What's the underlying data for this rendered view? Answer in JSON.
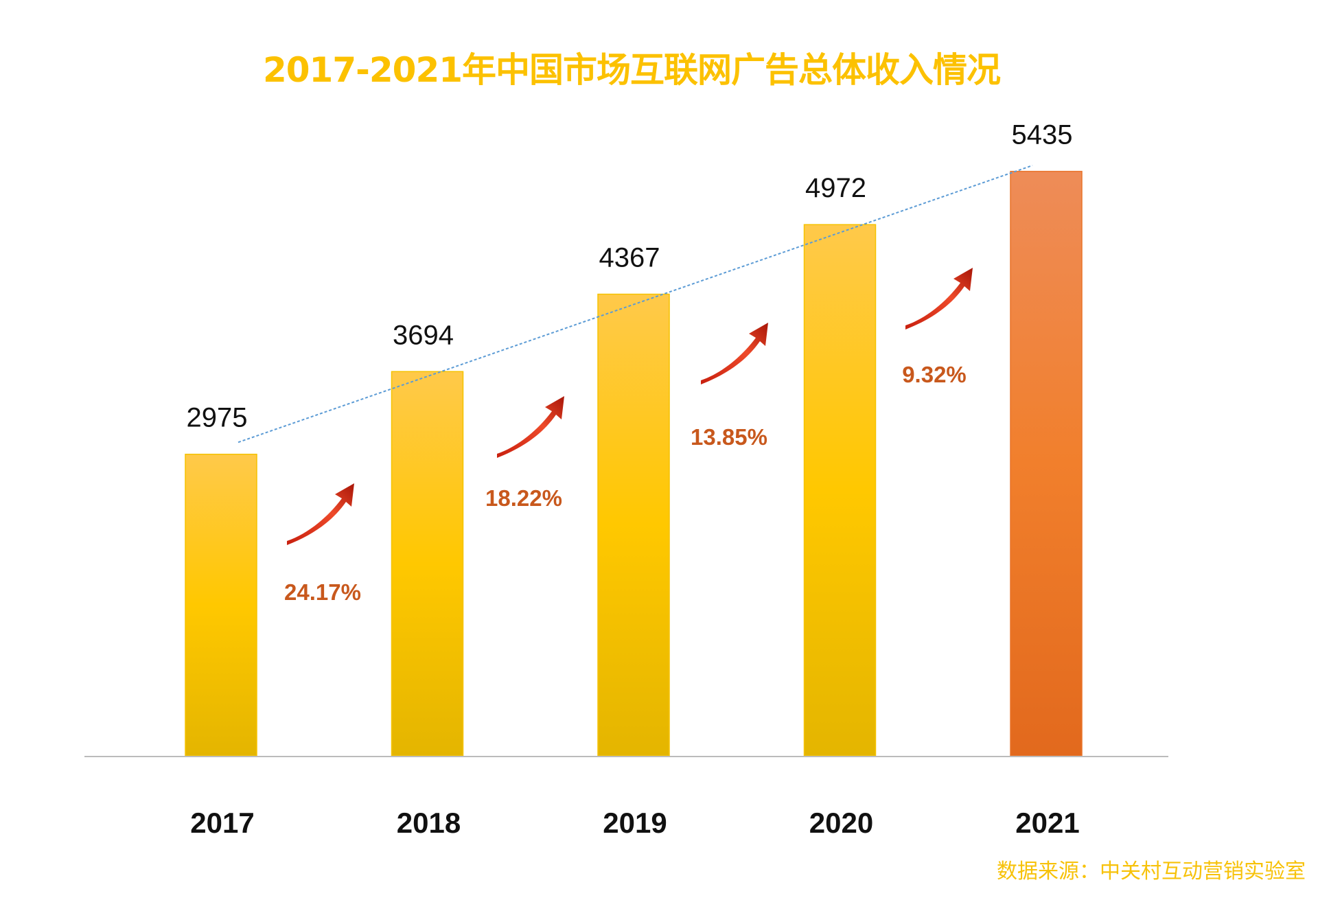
{
  "title": "2017-2021年中国市场互联网广告总体收入情况",
  "source": "数据来源：中关村互动营销实验室",
  "chart_data": {
    "type": "bar",
    "title": "2017-2021年中国市场互联网广告总体收入情况",
    "xlabel": "",
    "ylabel": "",
    "categories": [
      "2017",
      "2018",
      "2019",
      "2020",
      "2021"
    ],
    "values": [
      2975,
      3694,
      4367,
      4972,
      5435
    ],
    "value_labels": [
      "2975",
      "3694",
      "4367",
      "4972",
      "5435"
    ],
    "growth_labels": [
      "24.17%",
      "18.22%",
      "13.85%",
      "9.32%"
    ],
    "trendline": "linear, dashed",
    "grid": false,
    "legend": "none",
    "colors": {
      "bar": "#ffc800",
      "bar_highlight": "#f08030",
      "growth_text": "#c8581c",
      "arrow": "#e0301a",
      "trendline": "#5b9bd5",
      "title": "#fcc100"
    }
  }
}
